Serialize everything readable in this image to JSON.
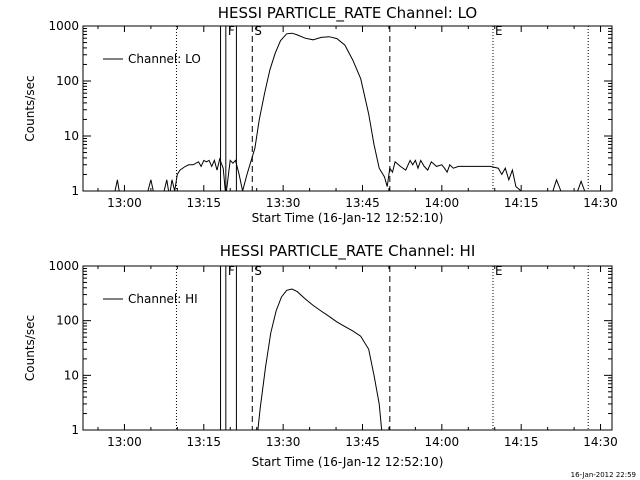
{
  "chart_data": [
    {
      "type": "line",
      "title": "HESSI PARTICLE_RATE Channel: LO",
      "xlabel": "Start Time (16-Jan-12 12:52:10)",
      "ylabel": "Counts/sec",
      "yscale": "log",
      "ylim": [
        1,
        1000
      ],
      "xlim": [
        "12:52:10",
        "14:32:10"
      ],
      "x_ticks": [
        "13:00",
        "13:15",
        "13:30",
        "13:45",
        "14:00",
        "14:15",
        "14:30"
      ],
      "y_ticks": [
        "1",
        "10",
        "100",
        "1000"
      ],
      "legend": {
        "position": "top-left",
        "entries": [
          "Channel: LO"
        ]
      },
      "markers": [
        {
          "time": "13:18:10",
          "style": "solid",
          "label": ""
        },
        {
          "time": "13:19:10",
          "style": "solid",
          "label": "F"
        },
        {
          "time": "13:21:10",
          "style": "solid",
          "label": ""
        },
        {
          "time": "13:24:10",
          "style": "dashed",
          "label": "S"
        },
        {
          "time": "13:50:10",
          "style": "dashed",
          "label": ""
        },
        {
          "time": "14:09:40",
          "style": "dotted",
          "label": "E"
        },
        {
          "time": "13:09:50",
          "style": "dotted",
          "label": ""
        },
        {
          "time": "14:27:40",
          "style": "dotted",
          "label": ""
        }
      ],
      "series": [
        {
          "name": "Channel: LO",
          "x": [
            "12:52:10",
            "12:56:30",
            "12:58:00",
            "12:58:40",
            "12:59:10",
            "13:04:10",
            "13:05:00",
            "13:05:40",
            "13:07:30",
            "13:08:00",
            "13:08:30",
            "13:09:00",
            "13:09:30",
            "13:10:00",
            "13:10:30",
            "13:11:30",
            "13:12:10",
            "13:13:00",
            "13:14:00",
            "13:14:30",
            "13:15:00",
            "13:15:30",
            "13:16:00",
            "13:16:30",
            "13:17:00",
            "13:17:30",
            "13:18:00",
            "13:18:40",
            "13:19:10",
            "13:20:00",
            "13:20:30",
            "13:21:00",
            "13:21:40",
            "13:22:20",
            "13:23:10",
            "13:24:40",
            "13:25:30",
            "13:26:30",
            "13:27:30",
            "13:28:30",
            "13:29:30",
            "13:30:40",
            "13:31:40",
            "13:32:40",
            "13:34:10",
            "13:35:40",
            "13:37:10",
            "13:38:40",
            "13:40:10",
            "13:41:40",
            "13:43:10",
            "13:44:40",
            "13:46:10",
            "13:47:10",
            "13:48:10",
            "13:49:10",
            "13:49:40",
            "13:50:10",
            "13:50:40",
            "13:51:10",
            "13:52:10",
            "13:53:10",
            "13:54:00",
            "13:54:30",
            "13:55:00",
            "13:55:30",
            "13:56:00",
            "13:56:40",
            "13:57:20",
            "13:58:00",
            "13:59:00",
            "14:00:00",
            "14:00:30",
            "14:01:00",
            "14:01:30",
            "14:02:10",
            "14:03:10",
            "14:05:10",
            "14:07:10",
            "14:09:10",
            "14:10:40",
            "14:11:20",
            "14:12:00",
            "14:12:40",
            "14:13:20",
            "14:14:00",
            "14:15:00",
            "14:21:00",
            "14:21:40",
            "14:22:30",
            "14:25:40",
            "14:26:20",
            "14:27:00",
            "14:32:10"
          ],
          "y": [
            1,
            1,
            0.8,
            1.6,
            0.8,
            0.8,
            1.6,
            0.8,
            1,
            1.6,
            0.8,
            1.6,
            1,
            2,
            2.4,
            2.8,
            3,
            3,
            3.4,
            2.8,
            3.6,
            3.4,
            3.6,
            2.8,
            3.6,
            2.4,
            3.8,
            2.6,
            0.8,
            3.6,
            3.2,
            3.6,
            2,
            1,
            2,
            6,
            20,
            60,
            160,
            320,
            540,
            720,
            740,
            690,
            600,
            560,
            620,
            640,
            590,
            450,
            240,
            110,
            25,
            7,
            2.6,
            1.8,
            1.2,
            2.6,
            2.2,
            3.4,
            2.8,
            2.4,
            3.6,
            3,
            3.6,
            2.6,
            3.6,
            2.8,
            2.4,
            3.4,
            2.8,
            3,
            2.6,
            2.2,
            3,
            2.6,
            2.8,
            2.8,
            2.8,
            2.8,
            2.6,
            2,
            2.6,
            1.6,
            2.4,
            1.2,
            1,
            1,
            1.6,
            1,
            1,
            1.5,
            1,
            1
          ]
        }
      ]
    },
    {
      "type": "line",
      "title": "HESSI PARTICLE_RATE Channel: HI",
      "xlabel": "Start Time (16-Jan-12 12:52:10)",
      "ylabel": "Counts/sec",
      "yscale": "log",
      "ylim": [
        1,
        1000
      ],
      "xlim": [
        "12:52:10",
        "14:32:10"
      ],
      "x_ticks": [
        "13:00",
        "13:15",
        "13:30",
        "13:45",
        "14:00",
        "14:15",
        "14:30"
      ],
      "y_ticks": [
        "1",
        "10",
        "100",
        "1000"
      ],
      "legend": {
        "position": "top-left",
        "entries": [
          "Channel: HI"
        ]
      },
      "markers": [
        {
          "time": "13:18:10",
          "style": "solid",
          "label": ""
        },
        {
          "time": "13:19:10",
          "style": "solid",
          "label": "F"
        },
        {
          "time": "13:21:10",
          "style": "solid",
          "label": ""
        },
        {
          "time": "13:24:10",
          "style": "dashed",
          "label": "S"
        },
        {
          "time": "13:50:10",
          "style": "dashed",
          "label": ""
        },
        {
          "time": "14:09:40",
          "style": "dotted",
          "label": "E"
        },
        {
          "time": "13:09:50",
          "style": "dotted",
          "label": ""
        },
        {
          "time": "14:27:40",
          "style": "dotted",
          "label": ""
        }
      ],
      "series": [
        {
          "name": "Channel: HI",
          "x": [
            "13:25:10",
            "13:25:40",
            "13:26:40",
            "13:27:40",
            "13:28:40",
            "13:29:40",
            "13:30:40",
            "13:31:40",
            "13:32:40",
            "13:34:10",
            "13:35:40",
            "13:37:10",
            "13:38:40",
            "13:40:10",
            "13:41:40",
            "13:43:10",
            "13:44:40",
            "13:46:10",
            "13:47:10",
            "13:48:10",
            "13:48:40"
          ],
          "y": [
            0.9,
            2.5,
            14,
            60,
            150,
            270,
            360,
            380,
            340,
            250,
            190,
            150,
            120,
            95,
            78,
            65,
            52,
            30,
            10,
            3,
            0.9
          ]
        }
      ]
    }
  ],
  "footer_timestamp": "16-Jan-2012 22:59"
}
